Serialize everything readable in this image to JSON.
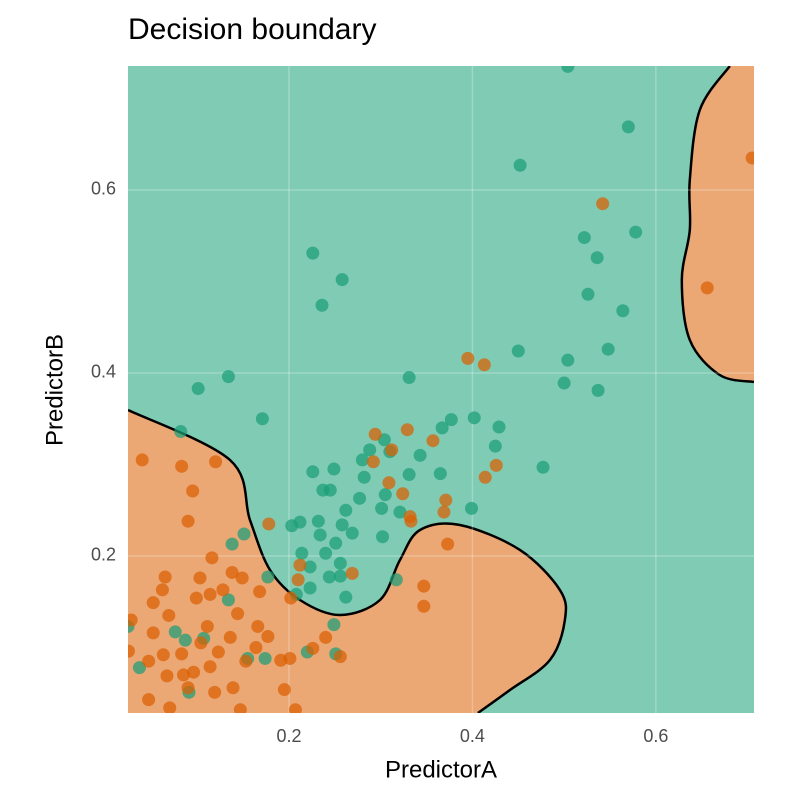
{
  "chart_data": {
    "type": "scatter",
    "title": "Decision boundary",
    "x_label": "PredictorA",
    "y_label": "PredictorB",
    "xlim": [
      0.0245,
      0.707
    ],
    "ylim": [
      0.0284,
      0.7355
    ],
    "xticks": [
      0.2,
      0.4,
      0.6
    ],
    "yticks": [
      0.2,
      0.4,
      0.6
    ],
    "grid": true,
    "background": "#80cbb4",
    "regions": [
      {
        "color": "#eba774",
        "corner": "bottom-left",
        "x": [
          0.0245,
          0.1357,
          0.1575,
          0.1793,
          0.212,
          0.2556,
          0.2992,
          0.321,
          0.3428,
          0.3864,
          0.4518,
          0.4954,
          0.5008,
          0.4845,
          0.4409,
          0.406
        ],
        "y": [
          0.3595,
          0.3049,
          0.2393,
          0.1847,
          0.1519,
          0.1355,
          0.1519,
          0.1956,
          0.2284,
          0.2339,
          0.2066,
          0.1628,
          0.13,
          0.0863,
          0.0535,
          0.0284
        ]
      },
      {
        "color": "#eba774",
        "corner": "top-right",
        "x": [
          0.6806,
          0.6479,
          0.637,
          0.637,
          0.6283,
          0.637,
          0.6697,
          0.707
        ],
        "y": [
          0.7355,
          0.6874,
          0.6109,
          0.5563,
          0.5016,
          0.4361,
          0.3978,
          0.3902
        ]
      }
    ],
    "series": [
      {
        "color": "#1b9e77",
        "x": [
          0.504,
          0.57,
          0.452,
          0.522,
          0.578,
          0.226,
          0.536,
          0.258,
          0.526,
          0.236,
          0.564,
          0.45,
          0.548,
          0.504,
          0.101,
          0.134,
          0.331,
          0.5,
          0.537,
          0.171,
          0.082,
          0.377,
          0.402,
          0.429,
          0.367,
          0.304,
          0.425,
          0.288,
          0.31,
          0.343,
          0.28,
          0.226,
          0.249,
          0.477,
          0.365,
          0.282,
          0.237,
          0.245,
          0.305,
          0.277,
          0.399,
          0.262,
          0.301,
          0.321,
          0.331,
          0.232,
          0.203,
          0.212,
          0.258,
          0.234,
          0.269,
          0.151,
          0.138,
          0.24,
          0.251,
          0.223,
          0.302,
          0.214,
          0.256,
          0.244,
          0.256,
          0.317,
          0.223,
          0.208,
          0.262,
          0.177,
          0.134,
          0.0245,
          0.076,
          0.107,
          0.087,
          0.249,
          0.22,
          0.251,
          0.174,
          0.037,
          0.155,
          0.091
        ],
        "y": [
          0.735,
          0.669,
          0.627,
          0.548,
          0.554,
          0.531,
          0.526,
          0.502,
          0.486,
          0.474,
          0.468,
          0.424,
          0.426,
          0.414,
          0.383,
          0.396,
          0.395,
          0.389,
          0.381,
          0.35,
          0.336,
          0.349,
          0.351,
          0.341,
          0.34,
          0.327,
          0.32,
          0.316,
          0.314,
          0.31,
          0.305,
          0.292,
          0.295,
          0.297,
          0.29,
          0.286,
          0.272,
          0.272,
          0.267,
          0.263,
          0.252,
          0.25,
          0.252,
          0.248,
          0.289,
          0.238,
          0.233,
          0.237,
          0.234,
          0.223,
          0.225,
          0.224,
          0.213,
          0.203,
          0.214,
          0.188,
          0.221,
          0.203,
          0.192,
          0.177,
          0.178,
          0.174,
          0.165,
          0.158,
          0.155,
          0.177,
          0.152,
          0.123,
          0.117,
          0.11,
          0.108,
          0.125,
          0.095,
          0.093,
          0.088,
          0.078,
          0.088,
          0.051
        ]
      },
      {
        "color": "#d95f02",
        "x": [
          0.705,
          0.542,
          0.656,
          0.395,
          0.413,
          0.294,
          0.329,
          0.12,
          0.04,
          0.083,
          0.292,
          0.312,
          0.357,
          0.426,
          0.414,
          0.095,
          0.309,
          0.324,
          0.371,
          0.332,
          0.369,
          0.09,
          0.178,
          0.333,
          0.373,
          0.116,
          0.065,
          0.103,
          0.138,
          0.149,
          0.212,
          0.269,
          0.062,
          0.128,
          0.168,
          0.21,
          0.347,
          0.347,
          0.052,
          0.099,
          0.114,
          0.202,
          0.028,
          0.052,
          0.136,
          0.069,
          0.111,
          0.166,
          0.177,
          0.24,
          0.144,
          0.104,
          0.025,
          0.063,
          0.083,
          0.123,
          0.164,
          0.201,
          0.226,
          0.256,
          0.114,
          0.096,
          0.047,
          0.085,
          0.153,
          0.191,
          0.067,
          0.139,
          0.119,
          0.09,
          0.195,
          0.047,
          0.07,
          0.207,
          0.147
        ],
        "y": [
          0.635,
          0.585,
          0.493,
          0.416,
          0.409,
          0.333,
          0.338,
          0.303,
          0.305,
          0.298,
          0.303,
          0.316,
          0.326,
          0.299,
          0.286,
          0.271,
          0.28,
          0.268,
          0.261,
          0.243,
          0.248,
          0.238,
          0.235,
          0.238,
          0.213,
          0.198,
          0.177,
          0.176,
          0.182,
          0.176,
          0.19,
          0.181,
          0.163,
          0.163,
          0.161,
          0.174,
          0.167,
          0.145,
          0.149,
          0.154,
          0.158,
          0.154,
          0.13,
          0.116,
          0.111,
          0.135,
          0.123,
          0.123,
          0.112,
          0.111,
          0.137,
          0.105,
          0.096,
          0.092,
          0.093,
          0.095,
          0.1,
          0.088,
          0.099,
          0.09,
          0.079,
          0.073,
          0.085,
          0.07,
          0.085,
          0.086,
          0.069,
          0.056,
          0.051,
          0.056,
          0.054,
          0.043,
          0.034,
          0.032,
          0.032
        ]
      }
    ]
  }
}
